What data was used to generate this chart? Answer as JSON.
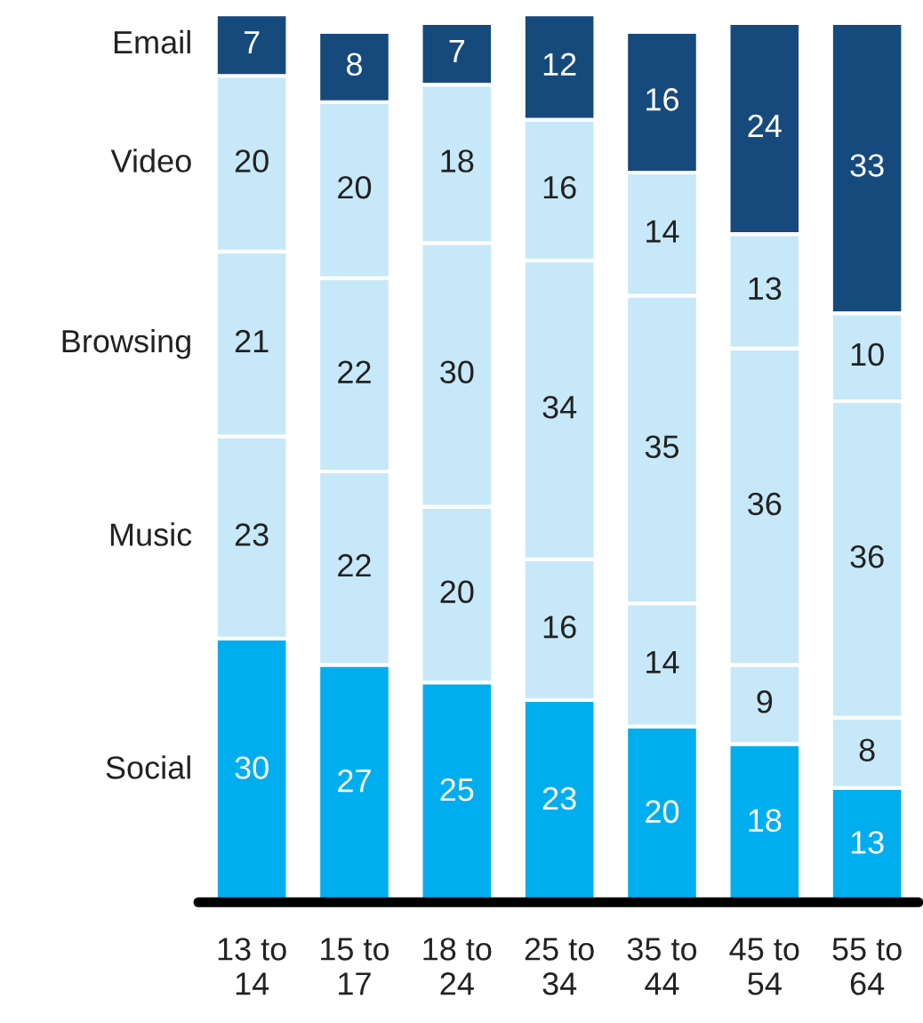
{
  "chart_data": {
    "type": "bar",
    "stacked": true,
    "data_labels": true,
    "legend": false,
    "grid": false,
    "categories": [
      "13 to\n14",
      "15 to\n17",
      "18 to\n24",
      "25 to\n34",
      "35 to\n44",
      "45 to\n54",
      "55 to\n64"
    ],
    "series": [
      {
        "name": "Social",
        "color": "#00aeef",
        "values": [
          30,
          27,
          25,
          23,
          20,
          18,
          13
        ]
      },
      {
        "name": "Music",
        "color": "#c7e8f8",
        "values": [
          23,
          22,
          20,
          16,
          14,
          9,
          8
        ]
      },
      {
        "name": "Browsing",
        "color": "#c7e8f8",
        "values": [
          21,
          22,
          30,
          34,
          35,
          36,
          36
        ]
      },
      {
        "name": "Video",
        "color": "#c7e8f8",
        "values": [
          20,
          20,
          18,
          16,
          14,
          13,
          10
        ]
      },
      {
        "name": "Email",
        "color": "#174a7c",
        "values": [
          7,
          8,
          7,
          12,
          16,
          24,
          33
        ]
      }
    ]
  }
}
